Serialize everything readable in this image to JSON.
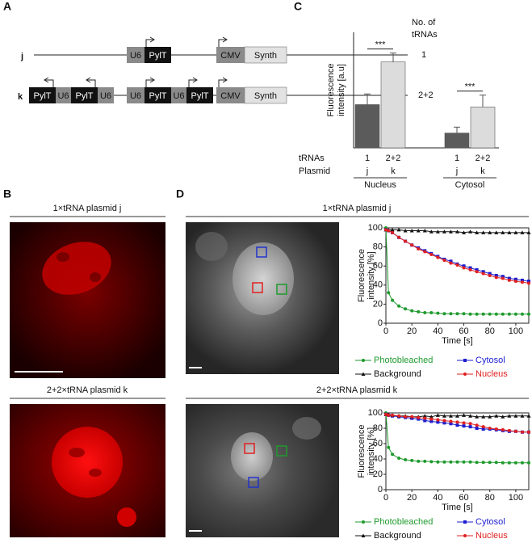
{
  "panel_labels": [
    "A",
    "B",
    "C",
    "D"
  ],
  "plasmid_map": {
    "header": [
      "No. of",
      "tRNAs"
    ],
    "rows": [
      {
        "name": "j",
        "elements": [
          "U6",
          "PylT",
          "CMV",
          "Synth"
        ],
        "count": "1"
      },
      {
        "name": "k",
        "elements": [
          "PylT",
          "U6",
          "PylT",
          "U6",
          "U6",
          "PylT",
          "U6",
          "PylT",
          "CMV",
          "Synth"
        ],
        "count": "2+2"
      }
    ]
  },
  "panel_b": {
    "titles": [
      "1×tRNA plasmid j",
      "2+2×tRNA plasmid k"
    ]
  },
  "chart_data": [
    {
      "type": "bar",
      "ylabel": [
        "Fluorescence",
        "intensity [a.u]"
      ],
      "row_labels": [
        "tRNAs",
        "Plasmid"
      ],
      "categories": [
        "1",
        "2+2",
        "1",
        "2+2"
      ],
      "plasmids": [
        "j",
        "k",
        "j",
        "k"
      ],
      "groups": [
        "Nucleus",
        "Cytosol"
      ],
      "values": [
        73,
        145,
        25,
        69
      ],
      "errors": [
        18,
        15,
        10,
        20
      ],
      "colors": [
        "#5b5b5b",
        "#dcdcdc",
        "#5b5b5b",
        "#dcdcdc"
      ],
      "annotations": [
        "***",
        "***"
      ],
      "ylim": [
        0,
        195
      ]
    },
    {
      "type": "line",
      "title": "1×tRNA plasmid j",
      "xlabel": "Time [s]",
      "ylabel": [
        "Fluorescence",
        "intensity [%]"
      ],
      "x": [
        0,
        2,
        5,
        10,
        15,
        20,
        25,
        30,
        35,
        40,
        45,
        50,
        55,
        60,
        65,
        70,
        75,
        80,
        85,
        90,
        95,
        100,
        105,
        110
      ],
      "series": [
        {
          "name": "Photobleached",
          "color": "#1f9a2e",
          "marker": "circle",
          "values": [
            100,
            32,
            24,
            18,
            15,
            13,
            12,
            11,
            11,
            10.5,
            10,
            10,
            10,
            10,
            9.5,
            9.5,
            9.5,
            9.5,
            9.5,
            9.5,
            9.5,
            9.5,
            9.5,
            9.5
          ]
        },
        {
          "name": "Cytosol",
          "color": "#1c1cd0",
          "marker": "square",
          "values": [
            98,
            97,
            95,
            90,
            86,
            82,
            79,
            76,
            73,
            70,
            67,
            65,
            62,
            60,
            58,
            56,
            54,
            52,
            50,
            49,
            47,
            46,
            45,
            44
          ]
        },
        {
          "name": "Background",
          "color": "#111111",
          "marker": "triangle",
          "values": [
            98,
            98,
            98,
            98,
            97,
            97,
            97,
            97,
            96,
            96,
            96,
            96,
            96,
            95,
            96,
            95,
            95,
            95,
            95,
            95,
            95,
            95,
            95,
            95
          ]
        },
        {
          "name": "Nucleus",
          "color": "#e02020",
          "marker": "circle",
          "values": [
            98,
            97,
            95,
            90,
            86,
            82,
            78,
            75,
            72,
            69,
            66,
            63,
            61,
            58,
            56,
            54,
            52,
            50,
            48,
            47,
            45,
            44,
            43,
            42
          ]
        }
      ],
      "xlim": [
        0,
        110
      ],
      "xticks": [
        0,
        20,
        40,
        60,
        80,
        100
      ],
      "ylim": [
        0,
        100
      ],
      "yticks": [
        0,
        20,
        40,
        60,
        80,
        100
      ]
    },
    {
      "type": "line",
      "title": "2+2×tRNA plasmid k",
      "xlabel": "Time [s]",
      "ylabel": [
        "Fluorescence",
        "intensity [%]"
      ],
      "x": [
        0,
        2,
        5,
        10,
        15,
        20,
        25,
        30,
        35,
        40,
        45,
        50,
        55,
        60,
        65,
        70,
        75,
        80,
        85,
        90,
        95,
        100,
        105,
        110
      ],
      "series": [
        {
          "name": "Photobleached",
          "color": "#1f9a2e",
          "marker": "circle",
          "values": [
            100,
            55,
            46,
            41,
            39,
            38,
            37,
            37,
            36.5,
            36,
            36,
            36,
            36,
            36,
            36,
            35.5,
            35.5,
            35.5,
            35.5,
            35,
            35,
            35,
            35,
            35
          ]
        },
        {
          "name": "Cytosol",
          "color": "#1c1cd0",
          "marker": "square",
          "values": [
            98,
            97,
            96,
            95,
            94,
            93,
            92,
            90,
            89,
            88,
            87,
            86,
            84,
            83,
            82,
            80,
            79,
            79,
            78,
            77,
            76,
            76,
            75,
            75
          ]
        },
        {
          "name": "Background",
          "color": "#111111",
          "marker": "triangle",
          "values": [
            98,
            98,
            97,
            96,
            96,
            95,
            95,
            96,
            95,
            97,
            96,
            96,
            96,
            97,
            96,
            95,
            95,
            95,
            96,
            95,
            96,
            96,
            96,
            96
          ]
        },
        {
          "name": "Nucleus",
          "color": "#e02020",
          "marker": "circle",
          "values": [
            98,
            97,
            97,
            96,
            95,
            95,
            94,
            93,
            92,
            91,
            90,
            89,
            88,
            87,
            86,
            84,
            82,
            80,
            79,
            78,
            77,
            76,
            75,
            75
          ]
        }
      ],
      "xlim": [
        0,
        110
      ],
      "xticks": [
        0,
        20,
        40,
        60,
        80,
        100
      ],
      "ylim": [
        0,
        100
      ],
      "yticks": [
        0,
        20,
        40,
        60,
        80,
        100
      ]
    }
  ]
}
